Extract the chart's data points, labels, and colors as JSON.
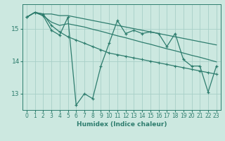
{
  "xlabel": "Humidex (Indice chaleur)",
  "bg_color": "#cce8e0",
  "grid_color": "#a8cfc8",
  "line_color": "#2e7d6e",
  "xlim": [
    -0.5,
    23.5
  ],
  "ylim": [
    12.5,
    15.75
  ],
  "yticks": [
    13,
    14,
    15
  ],
  "xticks": [
    0,
    1,
    2,
    3,
    4,
    5,
    6,
    7,
    8,
    9,
    10,
    11,
    12,
    13,
    14,
    15,
    16,
    17,
    18,
    19,
    20,
    21,
    22,
    23
  ],
  "line_zigzag": [
    15.35,
    15.5,
    15.4,
    14.95,
    14.8,
    15.35,
    12.65,
    13.0,
    12.85,
    13.85,
    14.55,
    15.25,
    14.85,
    14.95,
    14.85,
    14.9,
    14.85,
    14.45,
    14.85,
    14.05,
    13.85,
    13.85,
    13.05,
    13.85
  ],
  "line_upper": [
    15.35,
    15.5,
    15.45,
    15.45,
    15.4,
    15.4,
    15.35,
    15.3,
    15.25,
    15.2,
    15.15,
    15.1,
    15.05,
    15.0,
    14.95,
    14.9,
    14.85,
    14.8,
    14.75,
    14.7,
    14.65,
    14.6,
    14.55,
    14.5
  ],
  "line_mid_upper": [
    15.35,
    15.5,
    15.45,
    15.1,
    14.9,
    14.75,
    14.65,
    14.55,
    14.45,
    14.35,
    14.25,
    14.2,
    14.15,
    14.1,
    14.05,
    14.0,
    13.95,
    13.9,
    13.85,
    13.8,
    13.75,
    13.7,
    13.65,
    13.6
  ],
  "line_lower": [
    15.35,
    15.5,
    15.4,
    15.2,
    15.1,
    15.15,
    15.1,
    15.05,
    14.98,
    14.92,
    14.85,
    14.78,
    14.72,
    14.65,
    14.58,
    14.52,
    14.45,
    14.38,
    14.32,
    14.25,
    14.18,
    14.12,
    14.05,
    13.98
  ]
}
